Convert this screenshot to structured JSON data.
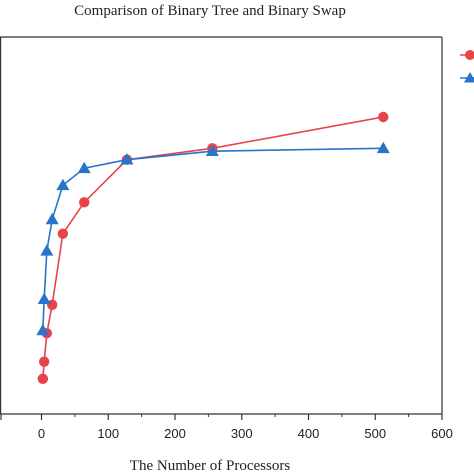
{
  "chart_data": {
    "type": "line",
    "title": "Comparison of Binary Tree and Binary Swap",
    "xlabel": "The Number of Processors",
    "ylabel": "",
    "xlim": [
      -60,
      600
    ],
    "xticks": [
      0,
      100,
      200,
      300,
      400,
      500,
      600
    ],
    "ylim": [
      0,
      1
    ],
    "grid": false,
    "legend_position": "top-right",
    "series": [
      {
        "color": "#e8434b",
        "marker": "circle",
        "x": [
          2,
          4,
          8,
          16,
          32,
          64,
          128,
          256,
          512
        ],
        "y": [
          0.05,
          0.11,
          0.21,
          0.31,
          0.56,
          0.67,
          0.82,
          0.86,
          0.97
        ]
      },
      {
        "color": "#2774c9",
        "marker": "triangle",
        "x": [
          2,
          4,
          8,
          16,
          32,
          64,
          128,
          256,
          512
        ],
        "y": [
          0.22,
          0.33,
          0.5,
          0.61,
          0.73,
          0.79,
          0.82,
          0.85,
          0.86
        ]
      }
    ]
  }
}
